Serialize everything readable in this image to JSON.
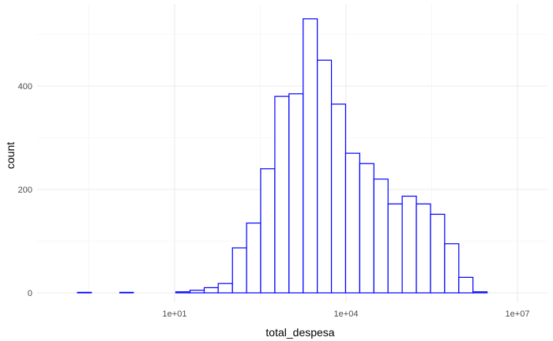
{
  "chart_data": {
    "type": "bar",
    "subtype": "histogram",
    "xlabel": "total_despesa",
    "ylabel": "count",
    "x_scale": "log10",
    "x_ticks": [
      {
        "value": 10,
        "label": "1e+01"
      },
      {
        "value": 10000,
        "label": "1e+04"
      },
      {
        "value": 10000000,
        "label": "1e+07"
      }
    ],
    "y_ticks": [
      {
        "value": 0,
        "label": "0"
      },
      {
        "value": 200,
        "label": "200"
      },
      {
        "value": 400,
        "label": "400"
      }
    ],
    "ylim": [
      0,
      535
    ],
    "grid": true,
    "bar_fill": "#ffffff",
    "bar_color": "#0000ff",
    "bins": [
      {
        "x_from": 0.2,
        "x_to": 0.35,
        "count": 1
      },
      {
        "x_from": 0.35,
        "x_to": 0.62,
        "count": 0
      },
      {
        "x_from": 0.62,
        "x_to": 1.1,
        "count": 0
      },
      {
        "x_from": 1.1,
        "x_to": 1.9,
        "count": 1
      },
      {
        "x_from": 1.9,
        "x_to": 3.4,
        "count": 0
      },
      {
        "x_from": 3.4,
        "x_to": 6.0,
        "count": 0
      },
      {
        "x_from": 6.0,
        "x_to": 10.5,
        "count": 0
      },
      {
        "x_from": 10.5,
        "x_to": 18.6,
        "count": 2
      },
      {
        "x_from": 18.6,
        "x_to": 33,
        "count": 5
      },
      {
        "x_from": 33,
        "x_to": 58,
        "count": 10
      },
      {
        "x_from": 58,
        "x_to": 103,
        "count": 18
      },
      {
        "x_from": 103,
        "x_to": 182,
        "count": 87
      },
      {
        "x_from": 182,
        "x_to": 321,
        "count": 135
      },
      {
        "x_from": 321,
        "x_to": 568,
        "count": 240
      },
      {
        "x_from": 568,
        "x_to": 1005,
        "count": 380
      },
      {
        "x_from": 1005,
        "x_to": 1777,
        "count": 385
      },
      {
        "x_from": 1777,
        "x_to": 3143,
        "count": 530
      },
      {
        "x_from": 3143,
        "x_to": 5559,
        "count": 450
      },
      {
        "x_from": 5559,
        "x_to": 9832,
        "count": 365
      },
      {
        "x_from": 9832,
        "x_to": 17389,
        "count": 270
      },
      {
        "x_from": 17389,
        "x_to": 30753,
        "count": 250
      },
      {
        "x_from": 30753,
        "x_to": 54390,
        "count": 220
      },
      {
        "x_from": 54390,
        "x_to": 96196,
        "count": 172
      },
      {
        "x_from": 96196,
        "x_to": 170133,
        "count": 187
      },
      {
        "x_from": 170133,
        "x_to": 300900,
        "count": 172
      },
      {
        "x_from": 300900,
        "x_to": 532175,
        "count": 152
      },
      {
        "x_from": 532175,
        "x_to": 941216,
        "count": 95
      },
      {
        "x_from": 941216,
        "x_to": 1664640,
        "count": 30
      },
      {
        "x_from": 1664640,
        "x_to": 2944108,
        "count": 2
      }
    ]
  }
}
